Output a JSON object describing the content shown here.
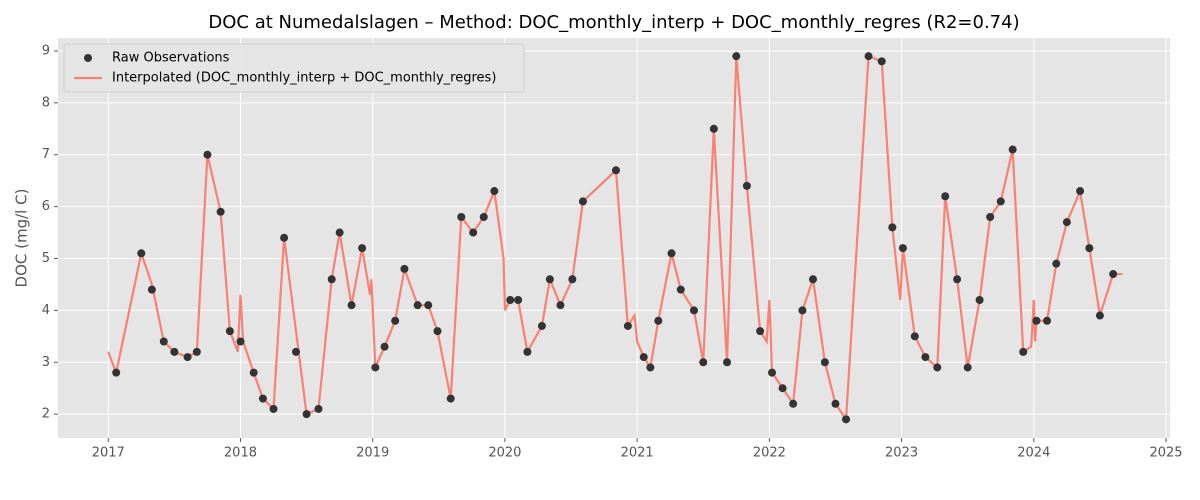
{
  "chart_data": {
    "type": "line",
    "title": "DOC at Numedalslagen – Method: DOC_monthly_interp + DOC_monthly_regres (R2=0.74)",
    "y_label": "DOC (mg/l C)",
    "xlim": [
      2016.62,
      2025.03
    ],
    "ylim": [
      1.54,
      9.25
    ],
    "xticks": [
      2017,
      2018,
      2019,
      2020,
      2021,
      2022,
      2023,
      2024,
      2025
    ],
    "yticks": [
      2,
      3,
      4,
      5,
      6,
      7,
      8,
      9
    ],
    "grid": true,
    "legend": "upper left",
    "series": [
      {
        "name": "Raw Observations",
        "type": "scatter",
        "color": "#333333",
        "x": [
          2017.06,
          2017.25,
          2017.33,
          2017.42,
          2017.5,
          2017.6,
          2017.67,
          2017.75,
          2017.85,
          2017.92,
          2018.0,
          2018.1,
          2018.17,
          2018.25,
          2018.33,
          2018.42,
          2018.5,
          2018.59,
          2018.69,
          2018.75,
          2018.84,
          2018.92,
          2019.02,
          2019.09,
          2019.17,
          2019.24,
          2019.34,
          2019.42,
          2019.49,
          2019.59,
          2019.67,
          2019.76,
          2019.84,
          2019.92,
          2020.04,
          2020.1,
          2020.17,
          2020.28,
          2020.34,
          2020.42,
          2020.51,
          2020.59,
          2020.84,
          2020.93,
          2021.05,
          2021.1,
          2021.16,
          2021.26,
          2021.33,
          2021.43,
          2021.5,
          2021.58,
          2021.68,
          2021.75,
          2021.83,
          2021.93,
          2022.02,
          2022.1,
          2022.18,
          2022.25,
          2022.33,
          2022.42,
          2022.5,
          2022.58,
          2022.75,
          2022.85,
          2022.93,
          2023.01,
          2023.1,
          2023.18,
          2023.27,
          2023.33,
          2023.42,
          2023.5,
          2023.59,
          2023.67,
          2023.75,
          2023.84,
          2023.92,
          2024.02,
          2024.1,
          2024.17,
          2024.25,
          2024.35,
          2024.42,
          2024.5,
          2024.6
        ],
        "values": [
          2.8,
          5.1,
          4.4,
          3.4,
          3.2,
          3.1,
          3.2,
          7.0,
          5.9,
          3.6,
          3.4,
          2.8,
          2.3,
          2.1,
          5.4,
          3.2,
          2.0,
          2.1,
          4.6,
          5.5,
          4.1,
          5.2,
          2.9,
          3.3,
          3.8,
          4.8,
          4.1,
          4.1,
          3.6,
          2.3,
          5.8,
          5.5,
          5.8,
          6.3,
          4.2,
          4.2,
          3.2,
          3.7,
          4.6,
          4.1,
          4.6,
          6.1,
          6.7,
          3.7,
          3.1,
          2.9,
          3.8,
          5.1,
          4.4,
          4.0,
          3.0,
          7.5,
          3.0,
          8.9,
          6.4,
          3.6,
          2.8,
          2.5,
          2.2,
          4.0,
          4.6,
          3.0,
          2.2,
          1.9,
          8.9,
          8.8,
          5.6,
          5.2,
          3.5,
          3.1,
          2.9,
          6.2,
          4.6,
          2.9,
          4.2,
          5.8,
          6.1,
          7.1,
          3.2,
          3.8,
          3.8,
          4.9,
          5.7,
          6.3,
          5.2,
          3.9,
          4.7
        ]
      },
      {
        "name": "Interpolated (DOC_monthly_interp + DOC_monthly_regres)",
        "type": "line",
        "color": "#fa8072",
        "x": [
          2017.0,
          2017.06,
          2017.25,
          2017.33,
          2017.42,
          2017.5,
          2017.6,
          2017.67,
          2017.75,
          2017.85,
          2017.92,
          2017.98,
          2018.0,
          2018.02,
          2018.1,
          2018.17,
          2018.25,
          2018.33,
          2018.5,
          2018.59,
          2018.69,
          2018.75,
          2018.84,
          2018.92,
          2018.98,
          2018.99,
          2019.02,
          2019.09,
          2019.17,
          2019.24,
          2019.34,
          2019.42,
          2019.49,
          2019.59,
          2019.67,
          2019.76,
          2019.84,
          2019.92,
          2019.99,
          2020.0,
          2020.04,
          2020.1,
          2020.17,
          2020.28,
          2020.34,
          2020.42,
          2020.51,
          2020.59,
          2020.84,
          2020.93,
          2020.98,
          2021.0,
          2021.05,
          2021.1,
          2021.16,
          2021.26,
          2021.33,
          2021.43,
          2021.5,
          2021.58,
          2021.68,
          2021.75,
          2021.83,
          2021.93,
          2021.98,
          2022.0,
          2022.02,
          2022.1,
          2022.18,
          2022.25,
          2022.33,
          2022.42,
          2022.5,
          2022.58,
          2022.75,
          2022.85,
          2022.93,
          2022.99,
          2023.01,
          2023.1,
          2023.18,
          2023.27,
          2023.33,
          2023.42,
          2023.5,
          2023.59,
          2023.67,
          2023.75,
          2023.84,
          2023.92,
          2023.98,
          2024.0,
          2024.01,
          2024.02,
          2024.1,
          2024.17,
          2024.25,
          2024.35,
          2024.42,
          2024.5,
          2024.6,
          2024.67
        ],
        "values": [
          3.2,
          2.8,
          5.1,
          4.5,
          3.4,
          3.2,
          3.1,
          3.2,
          7.0,
          5.9,
          3.6,
          3.2,
          4.3,
          3.4,
          2.8,
          2.3,
          2.1,
          5.4,
          2.0,
          2.1,
          4.6,
          5.5,
          4.1,
          5.2,
          4.3,
          4.6,
          2.9,
          3.3,
          3.8,
          4.8,
          4.1,
          4.1,
          3.6,
          2.3,
          5.8,
          5.5,
          5.8,
          6.3,
          5.0,
          4.0,
          4.2,
          4.2,
          3.2,
          3.7,
          4.6,
          4.1,
          4.6,
          6.1,
          6.7,
          3.7,
          3.9,
          3.4,
          3.1,
          2.9,
          3.8,
          5.1,
          4.4,
          4.0,
          3.0,
          7.5,
          3.0,
          8.9,
          6.4,
          3.6,
          3.4,
          4.2,
          2.8,
          2.5,
          2.2,
          4.0,
          4.6,
          3.0,
          2.2,
          1.9,
          8.9,
          8.8,
          5.6,
          4.2,
          5.2,
          3.5,
          3.1,
          2.9,
          6.2,
          4.6,
          2.9,
          4.2,
          5.8,
          6.1,
          7.1,
          3.2,
          3.3,
          4.2,
          3.4,
          3.8,
          3.8,
          4.9,
          5.7,
          6.3,
          5.2,
          3.9,
          4.7,
          4.7
        ]
      }
    ]
  }
}
